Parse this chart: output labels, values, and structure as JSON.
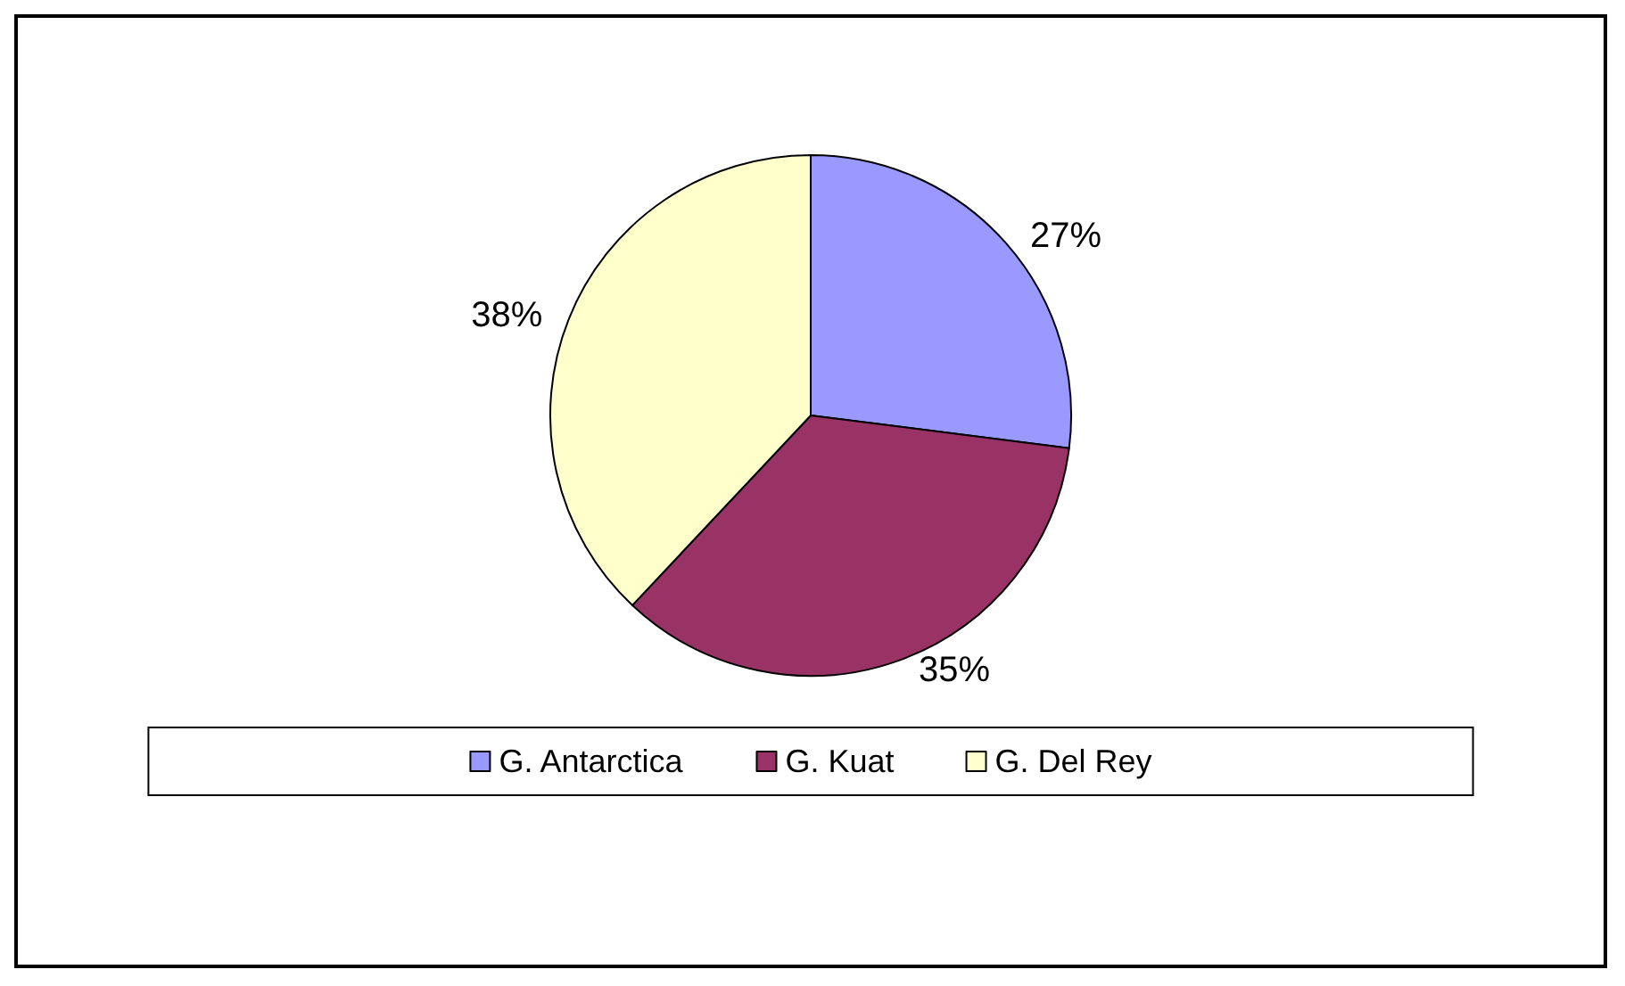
{
  "chart_data": {
    "type": "pie",
    "categories": [
      "G. Antarctica",
      "G. Kuat",
      "G. Del Rey"
    ],
    "values": [
      27,
      35,
      38
    ],
    "colors": [
      "#9999ff",
      "#993366",
      "#ffffcc"
    ],
    "value_labels": [
      "27%",
      "35%",
      "38%"
    ],
    "legend": "bottom"
  }
}
